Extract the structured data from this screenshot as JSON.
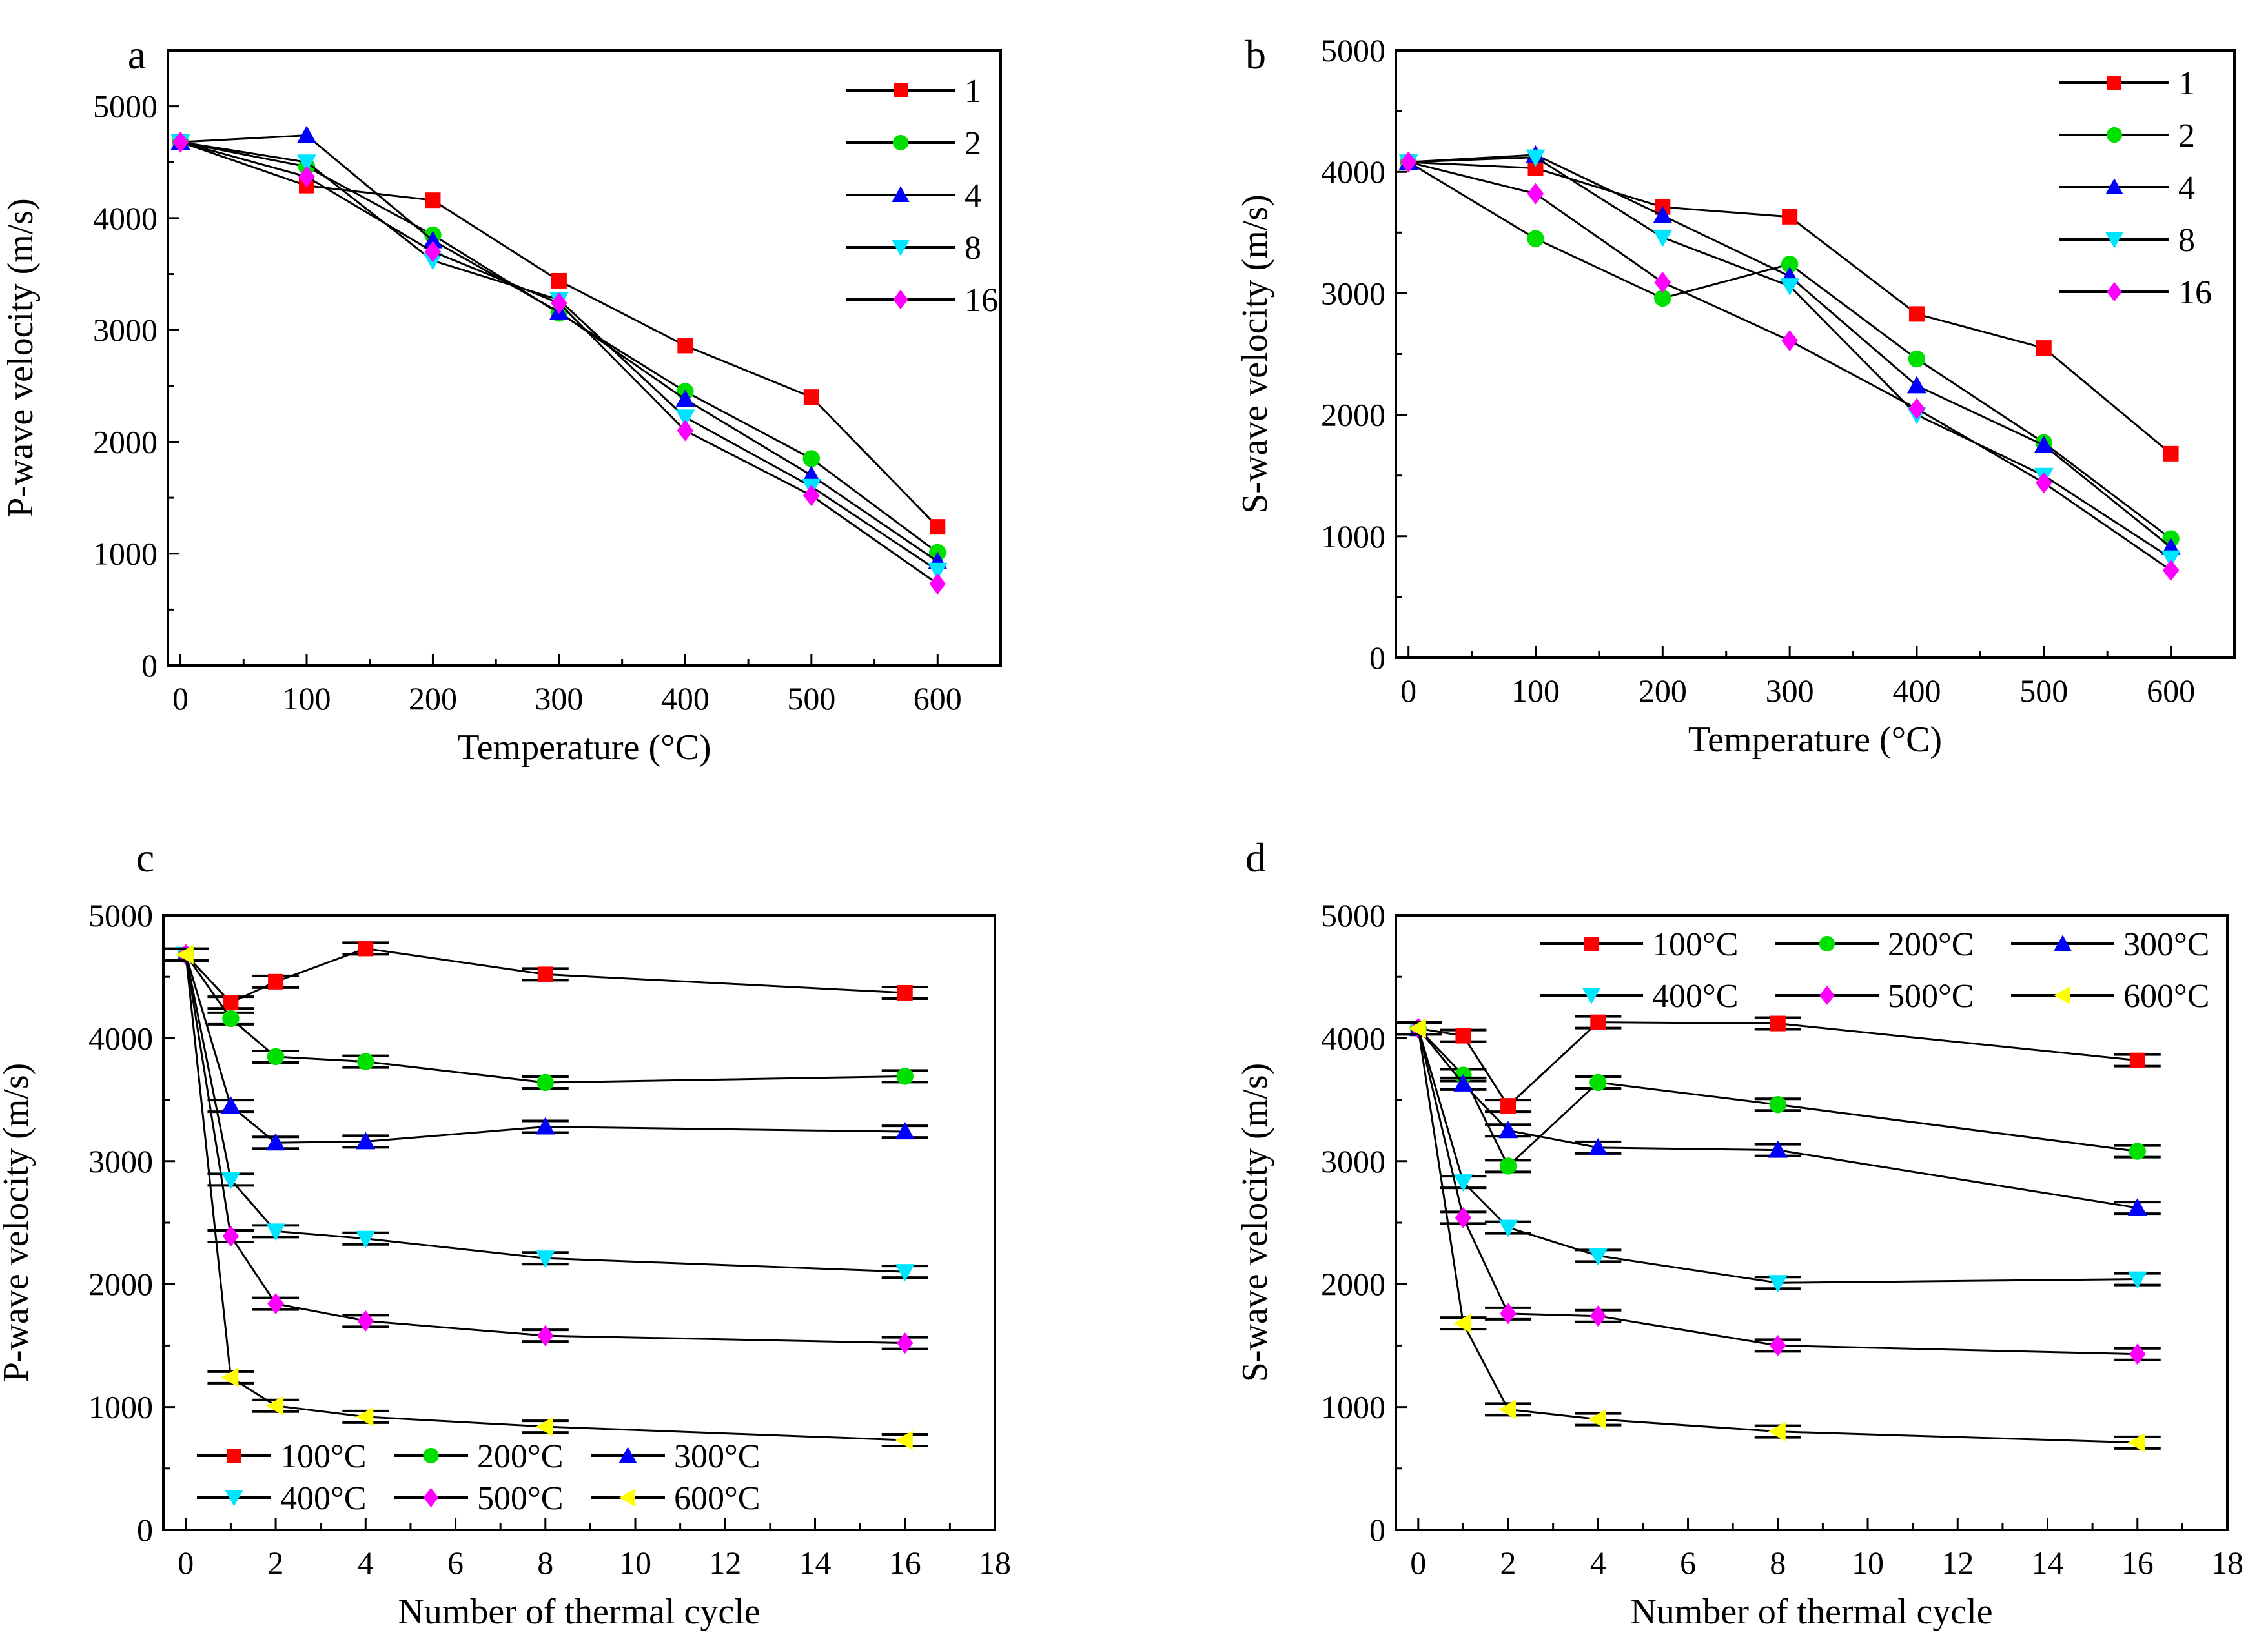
{
  "colors": {
    "s1": "#ff0000",
    "s2": "#00e000",
    "s3": "#0000ff",
    "s4": "#00e5ff",
    "s5": "#ff00ff",
    "s6": "#ffff00",
    "line": "#000000"
  },
  "chart_data": [
    {
      "panel": "a",
      "type": "line",
      "xlabel": "Temperature (°C)",
      "ylabel": "P-wave velocity (m/s)",
      "xlim": [
        -10,
        650
      ],
      "ylim": [
        0,
        5500
      ],
      "xticks": [
        0,
        100,
        200,
        300,
        400,
        500,
        600
      ],
      "yticks": [
        0,
        1000,
        2000,
        3000,
        4000,
        5000
      ],
      "legend": "top-right",
      "x": [
        0,
        100,
        200,
        300,
        400,
        500,
        600
      ],
      "series": [
        {
          "name": "1",
          "marker": "square",
          "values": [
            4680,
            4290,
            4160,
            3440,
            2860,
            2400,
            1240
          ]
        },
        {
          "name": "2",
          "marker": "circle",
          "values": [
            4680,
            4460,
            3850,
            3150,
            2450,
            1850,
            1010
          ]
        },
        {
          "name": "4",
          "marker": "triangle-up",
          "values": [
            4680,
            4740,
            3800,
            3160,
            2380,
            1700,
            930
          ]
        },
        {
          "name": "8",
          "marker": "triangle-down",
          "values": [
            4680,
            4500,
            3620,
            3270,
            2220,
            1600,
            850
          ]
        },
        {
          "name": "16",
          "marker": "diamond",
          "values": [
            4680,
            4370,
            3700,
            3240,
            2100,
            1520,
            730
          ]
        }
      ]
    },
    {
      "panel": "b",
      "type": "line",
      "xlabel": "Temperature (°C)",
      "ylabel": "S-wave velocity (m/s)",
      "xlim": [
        -10,
        650
      ],
      "ylim": [
        0,
        5000
      ],
      "xticks": [
        0,
        100,
        200,
        300,
        400,
        500,
        600
      ],
      "yticks": [
        0,
        1000,
        2000,
        3000,
        4000,
        5000
      ],
      "legend": "top-right",
      "x": [
        0,
        100,
        200,
        300,
        400,
        500,
        600
      ],
      "series": [
        {
          "name": "1",
          "marker": "square",
          "values": [
            4080,
            4030,
            3710,
            3630,
            2830,
            2550,
            1680
          ]
        },
        {
          "name": "2",
          "marker": "circle",
          "values": [
            4080,
            3450,
            2960,
            3240,
            2460,
            1770,
            980
          ]
        },
        {
          "name": "4",
          "marker": "triangle-up",
          "values": [
            4080,
            4140,
            3640,
            3140,
            2240,
            1750,
            910
          ]
        },
        {
          "name": "8",
          "marker": "triangle-down",
          "values": [
            4080,
            4120,
            3460,
            3060,
            2000,
            1500,
            820
          ]
        },
        {
          "name": "16",
          "marker": "diamond",
          "values": [
            4080,
            3820,
            3090,
            2610,
            2050,
            1440,
            720
          ]
        }
      ]
    },
    {
      "panel": "c",
      "type": "line",
      "xlabel": "Number of thermal cycle",
      "ylabel": "P-wave velocity (m/s)",
      "xlim": [
        -0.5,
        18
      ],
      "ylim": [
        0,
        5000
      ],
      "xticks": [
        0,
        2,
        4,
        6,
        8,
        10,
        12,
        14,
        16,
        18
      ],
      "yticks": [
        0,
        1000,
        2000,
        3000,
        4000,
        5000
      ],
      "legend": "bottom-left",
      "error_bars": true,
      "x": [
        0,
        1,
        2,
        4,
        8,
        16
      ],
      "series": [
        {
          "name": "100°C",
          "marker": "square",
          "values": [
            4680,
            4290,
            4460,
            4730,
            4520,
            4370
          ]
        },
        {
          "name": "200°C",
          "marker": "circle",
          "values": [
            4680,
            4160,
            3850,
            3810,
            3640,
            3690
          ]
        },
        {
          "name": "300°C",
          "marker": "triangle-up",
          "values": [
            4680,
            3450,
            3150,
            3160,
            3280,
            3240
          ]
        },
        {
          "name": "400°C",
          "marker": "triangle-down",
          "values": [
            4680,
            2850,
            2430,
            2370,
            2210,
            2100
          ]
        },
        {
          "name": "500°C",
          "marker": "diamond",
          "values": [
            4680,
            2390,
            1840,
            1700,
            1580,
            1520
          ]
        },
        {
          "name": "600°C",
          "marker": "triangle-left",
          "values": [
            4680,
            1240,
            1010,
            920,
            840,
            730
          ]
        }
      ]
    },
    {
      "panel": "d",
      "type": "line",
      "xlabel": "Number of thermal cycle",
      "ylabel": "S-wave velocity (m/s)",
      "xlim": [
        -0.5,
        18
      ],
      "ylim": [
        0,
        5000
      ],
      "xticks": [
        0,
        2,
        4,
        6,
        8,
        10,
        12,
        14,
        16,
        18
      ],
      "yticks": [
        0,
        1000,
        2000,
        3000,
        4000,
        5000
      ],
      "legend": "top-right",
      "error_bars": true,
      "x": [
        0,
        1,
        2,
        4,
        8,
        16
      ],
      "series": [
        {
          "name": "100°C",
          "marker": "square",
          "values": [
            4080,
            4020,
            3450,
            4130,
            4120,
            3820
          ]
        },
        {
          "name": "200°C",
          "marker": "circle",
          "values": [
            4080,
            3700,
            2960,
            3640,
            3460,
            3080
          ]
        },
        {
          "name": "300°C",
          "marker": "triangle-up",
          "values": [
            4080,
            3630,
            3250,
            3110,
            3090,
            2620
          ]
        },
        {
          "name": "400°C",
          "marker": "triangle-down",
          "values": [
            4080,
            2830,
            2460,
            2230,
            2010,
            2040
          ]
        },
        {
          "name": "500°C",
          "marker": "diamond",
          "values": [
            4080,
            2540,
            1760,
            1740,
            1500,
            1430
          ]
        },
        {
          "name": "600°C",
          "marker": "triangle-left",
          "values": [
            4080,
            1680,
            980,
            900,
            800,
            710
          ]
        }
      ]
    }
  ]
}
